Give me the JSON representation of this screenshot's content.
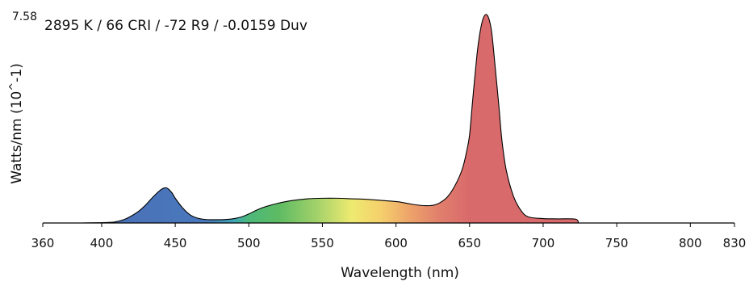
{
  "chart_data": {
    "type": "area",
    "title": "2895 K / 66 CRI / -72 R9 / -0.0159 Duv",
    "xlabel": "Wavelength (nm)",
    "ylabel": "Watts/nm (10^-1)",
    "xlim": [
      360,
      830
    ],
    "ylim": [
      0,
      7.58
    ],
    "ymax_label": "7.58",
    "x_ticks": [
      {
        "value": 360,
        "label": "360"
      },
      {
        "value": 400,
        "label": "400"
      },
      {
        "value": 450,
        "label": "450"
      },
      {
        "value": 500,
        "label": "500"
      },
      {
        "value": 550,
        "label": "550"
      },
      {
        "value": 600,
        "label": "600"
      },
      {
        "value": 650,
        "label": "650"
      },
      {
        "value": 700,
        "label": "700"
      },
      {
        "value": 750,
        "label": "750"
      },
      {
        "value": 800,
        "label": "800"
      },
      {
        "value": 830,
        "label": "830"
      }
    ],
    "grid": false,
    "fill": "visible-spectrum gradient",
    "series": [
      {
        "x": [
          385,
          405,
          410,
          415,
          420,
          425,
          430,
          435,
          440,
          443,
          445,
          448,
          450,
          455,
          460,
          465,
          470,
          475,
          480,
          485,
          490,
          495,
          500,
          505,
          510,
          520,
          530,
          540,
          550,
          560,
          570,
          580,
          590,
          600,
          605,
          610,
          615,
          620,
          625,
          630,
          635,
          640,
          645,
          648,
          650,
          652,
          655,
          657,
          659,
          661,
          663,
          665,
          667,
          670,
          672,
          675,
          680,
          685,
          690,
          700,
          710,
          722,
          724
        ],
        "y": [
          0,
          0.02,
          0.05,
          0.12,
          0.25,
          0.42,
          0.66,
          0.95,
          1.2,
          1.28,
          1.25,
          1.08,
          0.9,
          0.55,
          0.3,
          0.18,
          0.13,
          0.12,
          0.12,
          0.13,
          0.16,
          0.22,
          0.33,
          0.46,
          0.57,
          0.72,
          0.82,
          0.88,
          0.9,
          0.9,
          0.88,
          0.86,
          0.82,
          0.78,
          0.74,
          0.69,
          0.65,
          0.63,
          0.64,
          0.74,
          0.95,
          1.35,
          1.95,
          2.6,
          3.2,
          4.4,
          6.1,
          6.9,
          7.4,
          7.58,
          7.45,
          6.95,
          5.9,
          4.2,
          3.0,
          1.9,
          0.95,
          0.45,
          0.22,
          0.16,
          0.15,
          0.14,
          0
        ]
      }
    ]
  }
}
